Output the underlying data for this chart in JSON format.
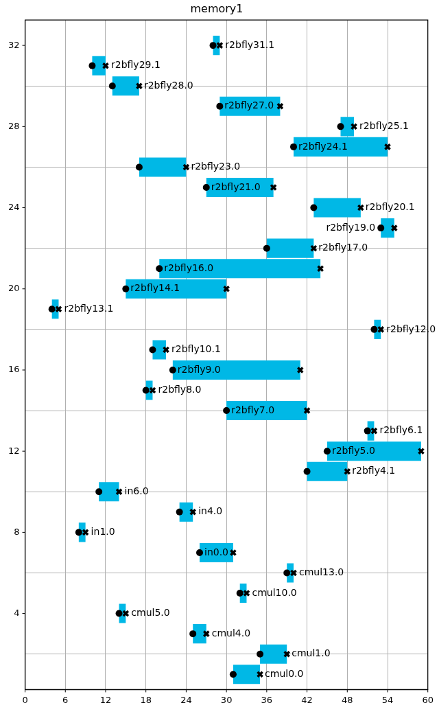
{
  "chart_data": {
    "type": "bar",
    "title": "memory1",
    "orientation": "horizontal",
    "xlim": [
      0,
      60
    ],
    "xticks": [
      0,
      6,
      12,
      18,
      24,
      30,
      36,
      42,
      48,
      54,
      60
    ],
    "ylim": [
      0.25,
      33.25
    ],
    "yticks": [
      4,
      8,
      12,
      16,
      20,
      24,
      28,
      32
    ],
    "grid": true,
    "legend": false,
    "series": [
      {
        "color": "#00b8e6",
        "x": [
          1,
          2,
          3,
          4,
          5,
          6,
          7,
          8,
          9,
          10,
          11,
          12,
          13,
          14,
          15,
          16,
          17,
          18,
          19,
          20,
          21,
          22,
          23,
          24,
          25,
          26,
          27,
          28,
          29,
          30,
          31,
          32
        ],
        "base": [
          31,
          35,
          25,
          14,
          32,
          39,
          26,
          8,
          23,
          11,
          42,
          45,
          51,
          30,
          18,
          22,
          19,
          52,
          4,
          15,
          20,
          36,
          53,
          43,
          27,
          17,
          40,
          47,
          29,
          13,
          10,
          28
        ],
        "values": [
          4,
          4,
          2,
          1,
          1,
          1,
          5,
          1,
          2,
          3,
          6,
          14,
          1,
          12,
          1,
          19,
          2,
          1,
          1,
          15,
          24,
          7,
          2,
          7,
          10,
          7,
          14,
          2,
          9,
          4,
          2,
          1
        ]
      },
      {
        "type": "scatter",
        "color": "#000000",
        "marker": "circle",
        "x": [
          1,
          2,
          3,
          4,
          5,
          6,
          7,
          8,
          9,
          10,
          11,
          12,
          13,
          14,
          15,
          16,
          17,
          18,
          19,
          20,
          21,
          22,
          23,
          24,
          25,
          26,
          27,
          28,
          29,
          30,
          31,
          32
        ],
        "values": [
          31,
          35,
          25,
          14,
          32,
          39,
          26,
          8,
          23,
          11,
          42,
          45,
          51,
          30,
          18,
          22,
          19,
          52,
          4,
          15,
          20,
          36,
          53,
          43,
          27,
          17,
          40,
          47,
          29,
          13,
          10,
          28
        ]
      },
      {
        "type": "scatter",
        "color": "#000000",
        "marker": "cross",
        "x": [
          1,
          2,
          3,
          4,
          5,
          6,
          7,
          8,
          9,
          10,
          11,
          12,
          13,
          14,
          15,
          16,
          17,
          18,
          19,
          20,
          21,
          22,
          23,
          24,
          25,
          26,
          27,
          28,
          29,
          30,
          31,
          32
        ],
        "values": [
          35,
          39,
          27,
          15,
          33,
          40,
          31,
          9,
          25,
          14,
          48,
          59,
          52,
          42,
          19,
          41,
          21,
          53,
          5,
          30,
          44,
          43,
          55,
          50,
          37,
          24,
          54,
          49,
          38,
          17,
          12,
          29
        ]
      }
    ],
    "annotations": [
      {
        "text": "cmul0.0",
        "x": 35,
        "y": 1
      },
      {
        "text": "cmul1.0",
        "x": 39,
        "y": 2
      },
      {
        "text": "cmul4.0",
        "x": 25,
        "y": 3
      },
      {
        "text": "cmul5.0",
        "x": 14,
        "y": 4
      },
      {
        "text": "cmul10.0",
        "x": 32,
        "y": 5
      },
      {
        "text": "cmul13.0",
        "x": 39,
        "y": 6
      },
      {
        "text": "in0.0",
        "x": 26,
        "y": 7
      },
      {
        "text": "in1.0",
        "x": 8,
        "y": 8
      },
      {
        "text": "in4.0",
        "x": 23,
        "y": 9
      },
      {
        "text": "in6.0",
        "x": 11,
        "y": 10
      },
      {
        "text": "r2bfly4.1",
        "x": 48,
        "y": 11
      },
      {
        "text": "r2bfly5.0",
        "x": 45,
        "y": 12
      },
      {
        "text": "r2bfly6.1",
        "x": 51,
        "y": 13
      },
      {
        "text": "r2bfly7.0",
        "x": 30,
        "y": 14
      },
      {
        "text": "r2bfly8.0",
        "x": 18,
        "y": 15
      },
      {
        "text": "r2bfly9.0",
        "x": 22,
        "y": 16
      },
      {
        "text": "r2bfly10.1",
        "x": 19,
        "y": 17
      },
      {
        "text": "r2bfly12.0",
        "x": 52,
        "y": 18
      },
      {
        "text": "r2bfly13.1",
        "x": 4,
        "y": 19
      },
      {
        "text": "r2bfly14.1",
        "x": 15,
        "y": 20
      },
      {
        "text": "r2bfly16.0",
        "x": 20,
        "y": 21
      },
      {
        "text": "r2bfly17.0",
        "x": 43,
        "y": 22
      },
      {
        "text": "r2bfly19.0",
        "x": 53,
        "y": 23
      },
      {
        "text": "r2bfly20.1",
        "x": 50,
        "y": 24
      },
      {
        "text": "r2bfly21.0",
        "x": 27,
        "y": 25
      },
      {
        "text": "r2bfly23.0",
        "x": 24,
        "y": 26
      },
      {
        "text": "r2bfly24.1",
        "x": 40,
        "y": 27
      },
      {
        "text": "r2bfly25.1",
        "x": 47,
        "y": 28
      },
      {
        "text": "r2bfly27.0",
        "x": 29,
        "y": 29
      },
      {
        "text": "r2bfly28.0",
        "x": 17,
        "y": 30
      },
      {
        "text": "r2bfly29.1",
        "x": 10,
        "y": 31
      },
      {
        "text": "r2bfly31.1",
        "x": 28,
        "y": 32
      }
    ]
  }
}
